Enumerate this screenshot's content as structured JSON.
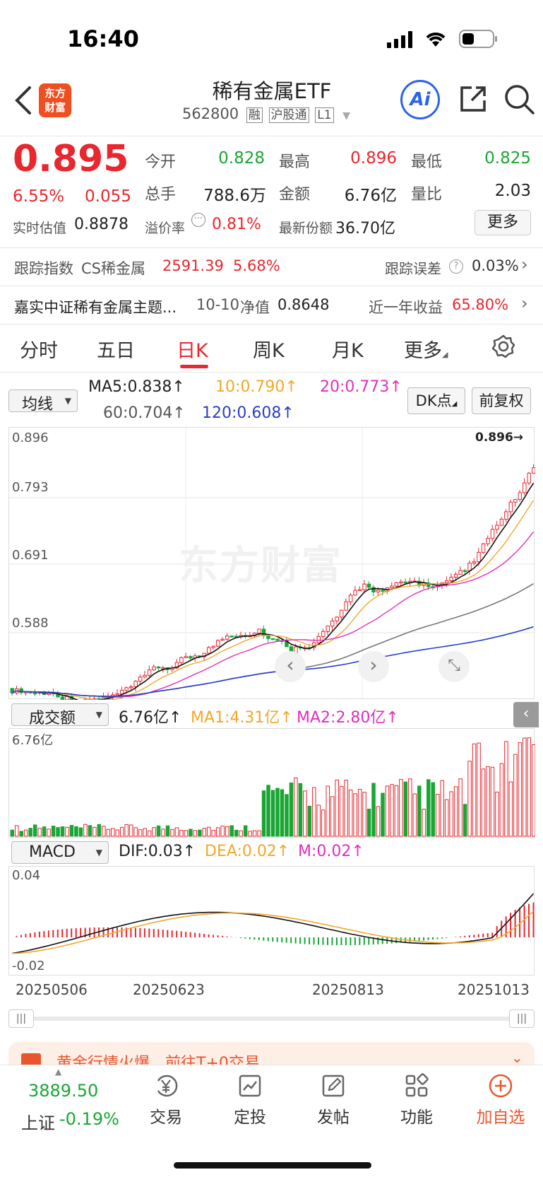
{
  "status_bar": {
    "time": "16:40"
  },
  "header": {
    "logo_text_line1": "东方",
    "logo_text_line2": "财富",
    "title": "稀有金属ETF",
    "code": "562800",
    "badges": [
      "融",
      "沪股通",
      "L1"
    ],
    "ai_label": "Ai"
  },
  "quote": {
    "price": "0.895",
    "change_pct": "6.55%",
    "change": "0.055",
    "open_label": "今开",
    "open": "0.828",
    "high_label": "最高",
    "high": "0.896",
    "low_label": "最低",
    "low": "0.825",
    "volume_label": "总手",
    "volume": "788.6万",
    "amount_label": "金额",
    "amount": "6.76亿",
    "ratio_label": "量比",
    "ratio": "2.03",
    "iopv_label": "实时估值",
    "iopv": "0.8878",
    "premium_label": "溢价率",
    "premium": "0.81%",
    "shares_label": "最新份额",
    "shares": "36.70亿",
    "more_button": "更多"
  },
  "tracking": {
    "index_label": "跟踪指数",
    "index_name": "CS稀金属",
    "index_value": "2591.39",
    "index_change": "5.68%",
    "error_label": "跟踪误差",
    "error_value": "0.03%"
  },
  "fund": {
    "name": "嘉实中证稀有金属主题...",
    "nav_date": "10-10",
    "nav_label": "净值",
    "nav_value": "0.8648",
    "return_label": "近一年收益",
    "return_value": "65.80%"
  },
  "tabs": [
    "分时",
    "五日",
    "日K",
    "周K",
    "月K",
    "更多"
  ],
  "active_tab": "日K",
  "ma_bar": {
    "selector": "均线",
    "ma5": "MA5:0.838",
    "ma10": "10:0.790",
    "ma20": "20:0.773",
    "ma60": "60:0.704",
    "ma120": "120:0.608",
    "dk_button": "DK点",
    "adjust_button": "前复权"
  },
  "kline": {
    "y_labels": [
      "0.896",
      "0.793",
      "0.691",
      "0.588"
    ],
    "max_marker": "0.896",
    "watermark": "东方财富"
  },
  "volume_bar": {
    "selector": "成交额",
    "value": "6.76亿",
    "ma1": "MA1:4.31亿",
    "ma2": "MA2:2.80亿",
    "max_label": "6.76亿"
  },
  "macd_bar": {
    "selector": "MACD",
    "dif": "DIF:0.03",
    "dea": "DEA:0.02",
    "m": "M:0.02",
    "top_label": "0.04",
    "bottom_label": "-0.02"
  },
  "dates": [
    "20250506",
    "20250623",
    "20250813",
    "20251013"
  ],
  "banner": {
    "text": "黄金行情火爆，前往T+0交易"
  },
  "bottom_nav": {
    "index_value": "3889.50",
    "index_name": "上证",
    "index_change": "-0.19%",
    "items": [
      "交易",
      "定投",
      "发帖",
      "功能",
      "加自选"
    ]
  },
  "colors": {
    "up": "#e8272e",
    "down": "#19a634",
    "accent": "#e8272e"
  }
}
